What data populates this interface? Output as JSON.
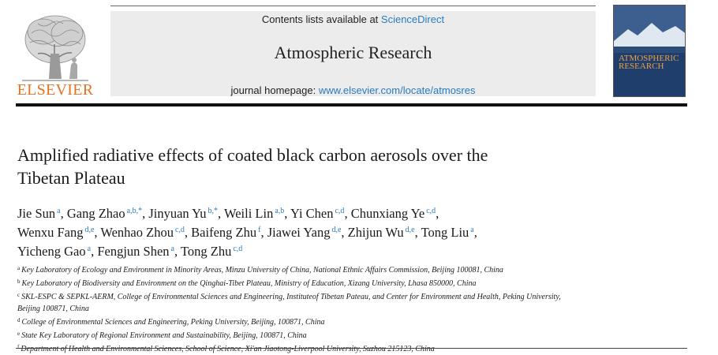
{
  "header": {
    "publisher": "ELSEVIER",
    "contents_prefix": "Contents lists available at ",
    "contents_link": "ScienceDirect",
    "journal_title": "Atmospheric Research",
    "homepage_prefix": "journal homepage: ",
    "homepage_link": "www.elsevier.com/locate/atmosres",
    "cover_text": "ATMOSPHERIC RESEARCH",
    "colors": {
      "publisher_orange": "#e37222",
      "link_blue": "#2a7bbd",
      "box_gray": "#ececec"
    }
  },
  "article": {
    "title_line1": "Amplified radiative effects of coated black carbon aerosols over the",
    "title_line2": "Tibetan Plateau"
  },
  "authors": [
    {
      "name": "Jie Sun",
      "sup": "a",
      "sep": ", "
    },
    {
      "name": "Gang Zhao",
      "sup": "a,b,*",
      "sep": ", "
    },
    {
      "name": "Jinyuan Yu",
      "sup": "b,*",
      "sep": ", "
    },
    {
      "name": "Weili Lin",
      "sup": "a,b",
      "sep": ", "
    },
    {
      "name": "Yi Chen",
      "sup": "c,d",
      "sep": ", "
    },
    {
      "name": "Chunxiang Ye",
      "sup": "c,d",
      "sep": ","
    },
    {
      "name": "Wenxu Fang",
      "sup": "d,e",
      "sep": ", "
    },
    {
      "name": "Wenhao Zhou",
      "sup": "c,d",
      "sep": ", "
    },
    {
      "name": "Baifeng Zhu",
      "sup": "f",
      "sep": ", "
    },
    {
      "name": "Jiawei Yang",
      "sup": "d,e",
      "sep": ", "
    },
    {
      "name": "Zhijun Wu",
      "sup": "d,e",
      "sep": ", "
    },
    {
      "name": "Tong Liu",
      "sup": "a",
      "sep": ","
    },
    {
      "name": "Yicheng Gao",
      "sup": "a",
      "sep": ", "
    },
    {
      "name": "Fengjun Shen",
      "sup": "a",
      "sep": ", "
    },
    {
      "name": "Tong Zhu",
      "sup": "c,d",
      "sep": ""
    }
  ],
  "affiliations": [
    {
      "label": "a",
      "text": "Key Laboratory of Ecology and Environment in Minority Areas, Minzu University of China, National Ethnic Affairs Commission, Beijing 100081, China"
    },
    {
      "label": "b",
      "text": "Key Laboratory of Biodiversity and Environment on the Qinghai-Tibet Plateau, Ministry of Education, Xizang University, Lhasa 850000, China"
    },
    {
      "label": "c",
      "text": "SKL-ESPC & SEPKL-AERM, College of Environmental Sciences and Engineering, Instituteof Tibetan Pateau, and Center for Environment and Health, Peking University,"
    },
    {
      "label": "",
      "text": "Beijing 100871, China"
    },
    {
      "label": "d",
      "text": "College of Environmental Sciences and Engineering, Peking University, Beijing, 100871, China"
    },
    {
      "label": "e",
      "text": "State Key Laboratory of Regional Environment and Sustainability, Beijing, 100871, China"
    },
    {
      "label": "f",
      "text": "Department of Health and Environmental Sciences, School of Science, Xi'an Jiaotong-Liverpool University, Suzhou 215123, China"
    }
  ]
}
